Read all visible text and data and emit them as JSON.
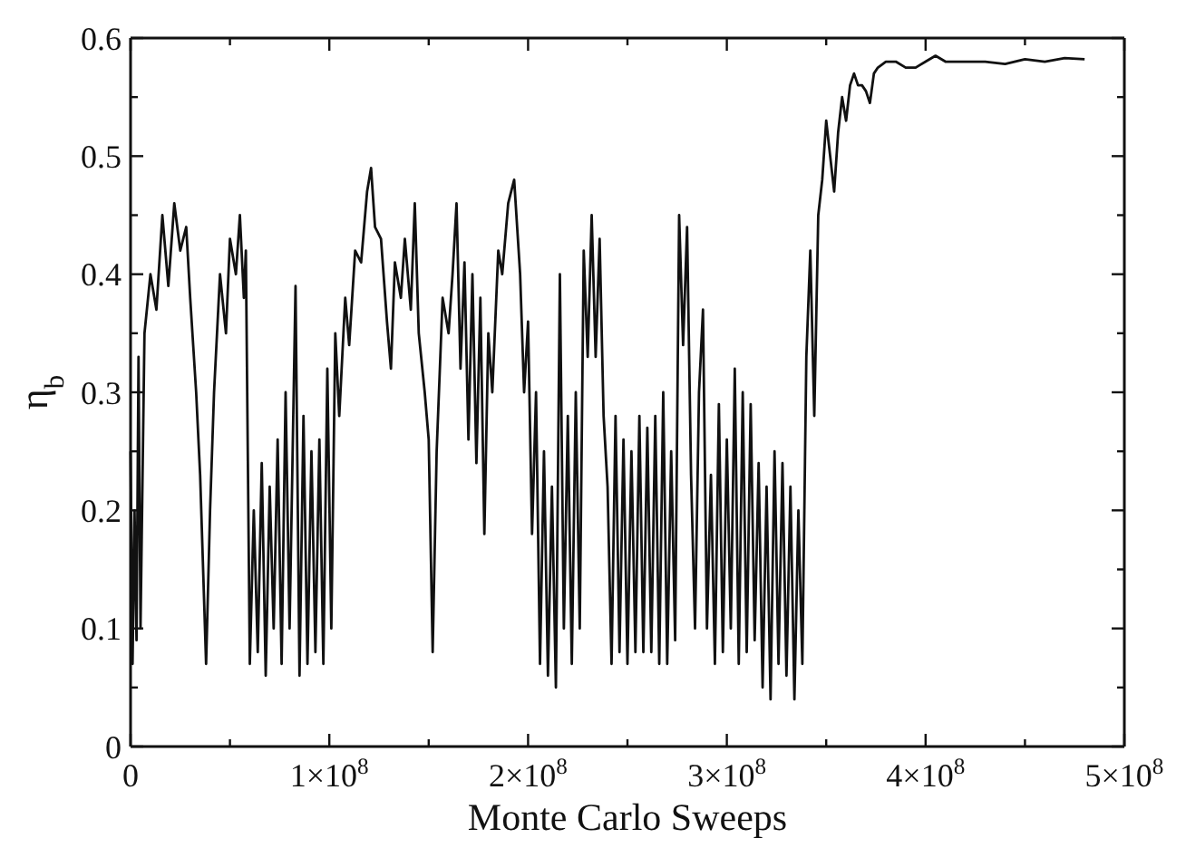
{
  "chart_data": {
    "type": "line",
    "xlabel": "Monte Carlo Sweeps",
    "ylabel": "η$_{b}$",
    "xlim": [
      0,
      500000000.0
    ],
    "ylim": [
      0,
      0.6
    ],
    "xticks": [
      0,
      {
        "value": 50000000.0,
        "label": null
      },
      {
        "value": 100000000.0,
        "label": "1×10$^{8}$"
      },
      {
        "value": 150000000.0,
        "label": null
      },
      {
        "value": 200000000.0,
        "label": "2×10$^{8}$"
      },
      {
        "value": 250000000.0,
        "label": null
      },
      {
        "value": 300000000.0,
        "label": "3×10$^{8}$"
      },
      {
        "value": 350000000.0,
        "label": null
      },
      {
        "value": 400000000.0,
        "label": "4×10$^{8}$"
      },
      {
        "value": 450000000.0,
        "label": null
      },
      {
        "value": 500000000.0,
        "label": "5×10$^{8}$"
      }
    ],
    "yticks": [
      0,
      {
        "value": 0.05,
        "label": null
      },
      0.1,
      {
        "value": 0.15,
        "label": null
      },
      0.2,
      {
        "value": 0.25,
        "label": null
      },
      0.3,
      {
        "value": 0.35,
        "label": null
      },
      0.4,
      {
        "value": 0.45,
        "label": null
      },
      0.5,
      {
        "value": 0.55,
        "label": null
      },
      0.6
    ],
    "grid": false,
    "marker": "none",
    "line_style": "solid",
    "series": [
      {
        "color": "#111111",
        "x": [
          0,
          1000000.0,
          2000000.0,
          3000000.0,
          4000000.0,
          5000000.0,
          7000000.0,
          10000000.0,
          13000000.0,
          16000000.0,
          19000000.0,
          22000000.0,
          25000000.0,
          28000000.0,
          30000000.0,
          33000000.0,
          35000000.0,
          38000000.0,
          40000000.0,
          42000000.0,
          45000000.0,
          48000000.0,
          50000000.0,
          53000000.0,
          55000000.0,
          57000000.0,
          58000000.0,
          60000000.0,
          62000000.0,
          64000000.0,
          66000000.0,
          68000000.0,
          70000000.0,
          72000000.0,
          74000000.0,
          76000000.0,
          78000000.0,
          80000000.0,
          83000000.0,
          85000000.0,
          87000000.0,
          89000000.0,
          91000000.0,
          93000000.0,
          95000000.0,
          97000000.0,
          99000000.0,
          101000000.0,
          103000000.0,
          105000000.0,
          108000000.0,
          110000000.0,
          113000000.0,
          116000000.0,
          119000000.0,
          121000000.0,
          123000000.0,
          126000000.0,
          129000000.0,
          131000000.0,
          133000000.0,
          136000000.0,
          138000000.0,
          141000000.0,
          143000000.0,
          145000000.0,
          148000000.0,
          150000000.0,
          152000000.0,
          154000000.0,
          157000000.0,
          160000000.0,
          162000000.0,
          164000000.0,
          166000000.0,
          168000000.0,
          170000000.0,
          172000000.0,
          174000000.0,
          176000000.0,
          178000000.0,
          180000000.0,
          182000000.0,
          185000000.0,
          187000000.0,
          190000000.0,
          193000000.0,
          196000000.0,
          198000000.0,
          200000000.0,
          202000000.0,
          204000000.0,
          206000000.0,
          208000000.0,
          210000000.0,
          212000000.0,
          214000000.0,
          216000000.0,
          218000000.0,
          220000000.0,
          222000000.0,
          224000000.0,
          226000000.0,
          228000000.0,
          230000000.0,
          232000000.0,
          234000000.0,
          236000000.0,
          238000000.0,
          240000000.0,
          242000000.0,
          244000000.0,
          246000000.0,
          248000000.0,
          250000000.0,
          252000000.0,
          254000000.0,
          256000000.0,
          258000000.0,
          260000000.0,
          262000000.0,
          264000000.0,
          266000000.0,
          268000000.0,
          270000000.0,
          272000000.0,
          274000000.0,
          276000000.0,
          278000000.0,
          280000000.0,
          282000000.0,
          284000000.0,
          286000000.0,
          288000000.0,
          290000000.0,
          292000000.0,
          294000000.0,
          296000000.0,
          298000000.0,
          300000000.0,
          302000000.0,
          304000000.0,
          306000000.0,
          308000000.0,
          310000000.0,
          312000000.0,
          314000000.0,
          316000000.0,
          318000000.0,
          320000000.0,
          322000000.0,
          324000000.0,
          326000000.0,
          328000000.0,
          330000000.0,
          332000000.0,
          334000000.0,
          336000000.0,
          338000000.0,
          340000000.0,
          342000000.0,
          344000000.0,
          346000000.0,
          348000000.0,
          350000000.0,
          352000000.0,
          354000000.0,
          356000000.0,
          358000000.0,
          360000000.0,
          362000000.0,
          364000000.0,
          366000000.0,
          368000000.0,
          370000000.0,
          372000000.0,
          374000000.0,
          376000000.0,
          380000000.0,
          385000000.0,
          390000000.0,
          395000000.0,
          400000000.0,
          405000000.0,
          410000000.0,
          420000000.0,
          430000000.0,
          440000000.0,
          450000000.0,
          460000000.0,
          470000000.0,
          480000000.0
        ],
        "values": [
          0.25,
          0.07,
          0.2,
          0.09,
          0.33,
          0.1,
          0.35,
          0.4,
          0.37,
          0.45,
          0.39,
          0.46,
          0.42,
          0.44,
          0.38,
          0.3,
          0.23,
          0.07,
          0.2,
          0.3,
          0.4,
          0.35,
          0.43,
          0.4,
          0.45,
          0.38,
          0.42,
          0.07,
          0.2,
          0.08,
          0.24,
          0.06,
          0.22,
          0.1,
          0.26,
          0.07,
          0.3,
          0.1,
          0.39,
          0.06,
          0.28,
          0.07,
          0.25,
          0.08,
          0.26,
          0.07,
          0.32,
          0.1,
          0.35,
          0.28,
          0.38,
          0.34,
          0.42,
          0.41,
          0.47,
          0.49,
          0.44,
          0.43,
          0.36,
          0.32,
          0.41,
          0.38,
          0.43,
          0.37,
          0.46,
          0.35,
          0.3,
          0.26,
          0.08,
          0.25,
          0.38,
          0.35,
          0.4,
          0.46,
          0.32,
          0.41,
          0.26,
          0.4,
          0.24,
          0.38,
          0.18,
          0.35,
          0.3,
          0.42,
          0.4,
          0.46,
          0.48,
          0.4,
          0.3,
          0.36,
          0.18,
          0.3,
          0.07,
          0.25,
          0.06,
          0.22,
          0.05,
          0.4,
          0.1,
          0.28,
          0.07,
          0.3,
          0.1,
          0.42,
          0.33,
          0.45,
          0.33,
          0.43,
          0.28,
          0.22,
          0.07,
          0.28,
          0.08,
          0.26,
          0.07,
          0.25,
          0.08,
          0.28,
          0.08,
          0.27,
          0.08,
          0.28,
          0.07,
          0.3,
          0.07,
          0.25,
          0.09,
          0.45,
          0.34,
          0.44,
          0.23,
          0.1,
          0.3,
          0.37,
          0.1,
          0.23,
          0.07,
          0.29,
          0.08,
          0.26,
          0.1,
          0.32,
          0.07,
          0.3,
          0.08,
          0.29,
          0.09,
          0.24,
          0.05,
          0.22,
          0.04,
          0.25,
          0.07,
          0.24,
          0.06,
          0.22,
          0.04,
          0.2,
          0.07,
          0.33,
          0.42,
          0.28,
          0.45,
          0.48,
          0.53,
          0.5,
          0.47,
          0.52,
          0.55,
          0.53,
          0.56,
          0.57,
          0.56,
          0.56,
          0.555,
          0.545,
          0.57,
          0.575,
          0.58,
          0.58,
          0.575,
          0.575,
          0.58,
          0.585,
          0.58,
          0.58,
          0.58,
          0.578,
          0.582,
          0.58,
          0.583,
          0.582
        ]
      }
    ]
  }
}
